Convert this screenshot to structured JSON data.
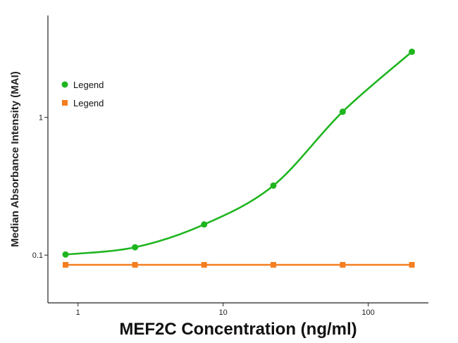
{
  "chart_data": {
    "type": "line",
    "title": "",
    "xlabel": "MEF2C Concentration (ng/ml)",
    "ylabel": "Median Absorbance Intensity (MAI)",
    "x_scale": "log",
    "y_scale": "log",
    "xlim": [
      0.62,
      260
    ],
    "ylim": [
      0.045,
      5.5
    ],
    "x_ticks": [
      {
        "value": 1,
        "label": "1"
      },
      {
        "value": 10,
        "label": "10"
      },
      {
        "value": 100,
        "label": "100"
      }
    ],
    "y_ticks": [
      {
        "value": 0.1,
        "label": "0.1"
      },
      {
        "value": 1,
        "label": "1"
      }
    ],
    "grid": false,
    "legend_position": "top-left",
    "series": [
      {
        "name": "Legend",
        "color": "#1fb51f",
        "marker": "circle",
        "smooth": true,
        "x": [
          0.82,
          2.47,
          7.4,
          22.2,
          66.7,
          200
        ],
        "y": [
          0.101,
          0.114,
          0.167,
          0.32,
          1.1,
          3.0
        ]
      },
      {
        "name": "Legend",
        "color": "#f47e20",
        "marker": "square",
        "smooth": false,
        "x": [
          0.82,
          2.47,
          7.4,
          22.2,
          66.7,
          200
        ],
        "y": [
          0.085,
          0.085,
          0.085,
          0.085,
          0.085,
          0.085
        ]
      }
    ]
  }
}
